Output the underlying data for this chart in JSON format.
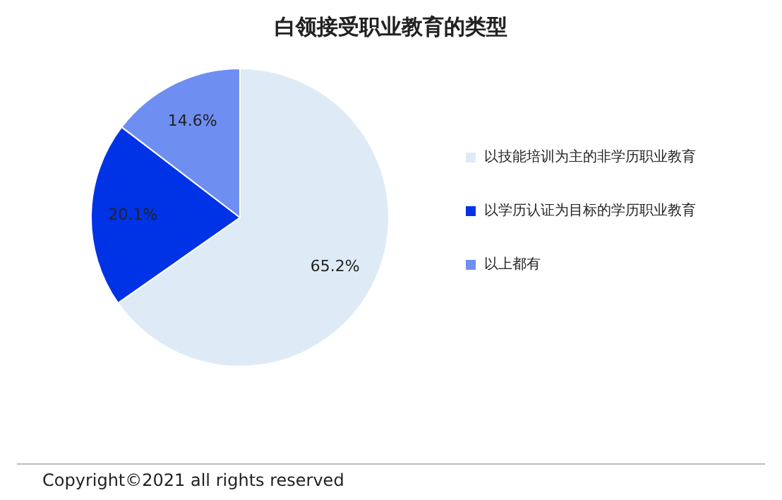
{
  "chart_data": {
    "type": "pie",
    "title": "白领接受职业教育的类型",
    "categories": [
      "以技能培训为主的非学历职业教育",
      "以学历认证为目标的学历职业教育",
      "以上都有"
    ],
    "values": [
      65.2,
      20.1,
      14.6
    ],
    "colors": [
      "#deebf7",
      "#0033e6",
      "#6f8ef2"
    ],
    "value_labels": [
      "65.2%",
      "20.1%",
      "14.6%"
    ],
    "legend": "right",
    "annotations": [
      "Copyright©2021 all rights reserved"
    ]
  }
}
